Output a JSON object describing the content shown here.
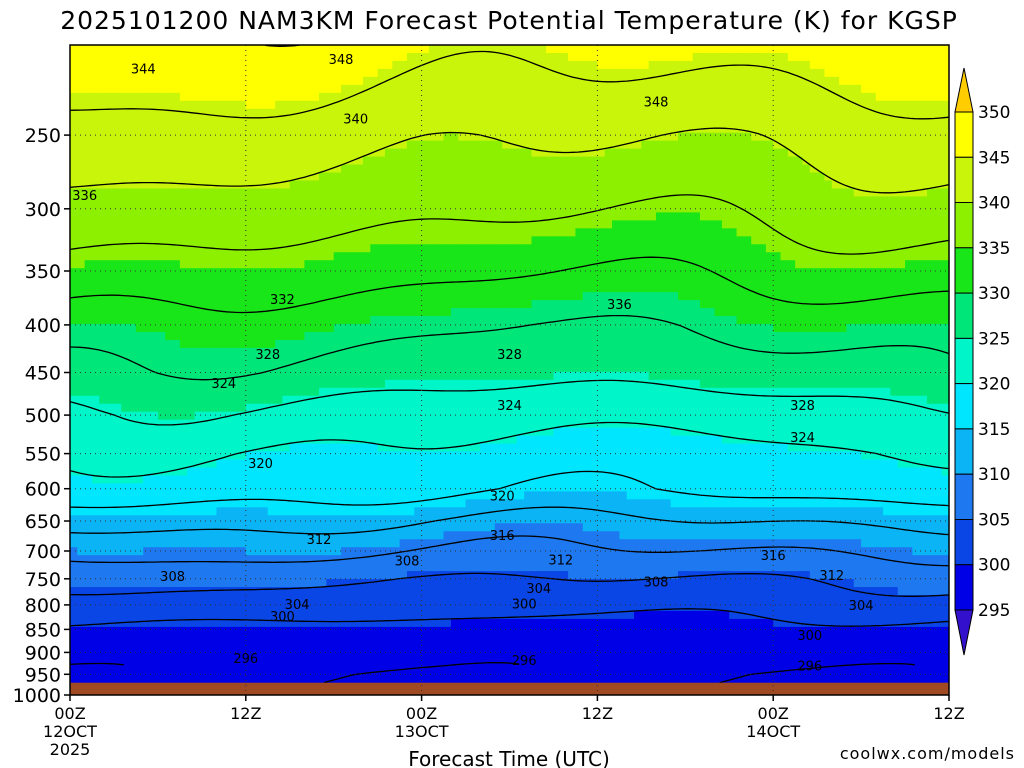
{
  "chart_data": {
    "type": "heatmap",
    "title": "2025101200 NAM3KM Forecast Potential Temperature (K) for KGSP",
    "xlabel": "Forecast Time (UTC)",
    "ylabel": "",
    "x_range_hours": [
      0,
      60
    ],
    "x_ticks": [
      {
        "hour": 0,
        "label": "00Z",
        "sub": "12OCT",
        "sub2": "2025"
      },
      {
        "hour": 12,
        "label": "12Z",
        "sub": "",
        "sub2": ""
      },
      {
        "hour": 24,
        "label": "00Z",
        "sub": "13OCT",
        "sub2": ""
      },
      {
        "hour": 36,
        "label": "12Z",
        "sub": "",
        "sub2": ""
      },
      {
        "hour": 48,
        "label": "00Z",
        "sub": "14OCT",
        "sub2": ""
      },
      {
        "hour": 60,
        "label": "12Z",
        "sub": "",
        "sub2": ""
      }
    ],
    "y_range_hpa": [
      200,
      1000
    ],
    "y_ticks": [
      250,
      300,
      350,
      400,
      450,
      500,
      550,
      600,
      650,
      700,
      750,
      800,
      850,
      900,
      950,
      1000
    ],
    "contour_interval_k": 4,
    "levels": [
      295,
      300,
      305,
      310,
      315,
      320,
      325,
      330,
      335,
      340,
      345,
      350
    ],
    "colorbar_labels": [
      "350",
      "345",
      "340",
      "335",
      "330",
      "325",
      "320",
      "315",
      "310",
      "305",
      "300",
      "295"
    ],
    "fill_colors": [
      "#3311cc",
      "#0000e6",
      "#0a46e6",
      "#1e78f0",
      "#0ab4f5",
      "#00e6ff",
      "#00f5c8",
      "#00e678",
      "#19e619",
      "#8cf000",
      "#c8f50a",
      "#ffff00",
      "#ffcd00"
    ],
    "profile_pressure_hpa": [
      200,
      250,
      300,
      350,
      400,
      450,
      500,
      550,
      600,
      650,
      700,
      750,
      800,
      850,
      900,
      950,
      970
    ],
    "profile_theta_k": [
      347,
      342,
      338,
      334,
      330,
      327,
      323,
      320,
      318,
      313,
      309,
      305,
      302,
      299,
      297,
      296,
      296
    ],
    "contour_labels": [
      {
        "text": "344",
        "hour": 5.0,
        "p": 212
      },
      {
        "text": "348",
        "hour": 18.5,
        "p": 207
      },
      {
        "text": "348",
        "hour": 40.0,
        "p": 230
      },
      {
        "text": "340",
        "hour": 19.5,
        "p": 240
      },
      {
        "text": "336",
        "hour": 1.0,
        "p": 290
      },
      {
        "text": "336",
        "hour": 37.5,
        "p": 380
      },
      {
        "text": "332",
        "hour": 14.5,
        "p": 375
      },
      {
        "text": "328",
        "hour": 13.5,
        "p": 430
      },
      {
        "text": "328",
        "hour": 30.0,
        "p": 430
      },
      {
        "text": "328",
        "hour": 50.0,
        "p": 488
      },
      {
        "text": "324",
        "hour": 10.5,
        "p": 462
      },
      {
        "text": "324",
        "hour": 30.0,
        "p": 488
      },
      {
        "text": "324",
        "hour": 50.0,
        "p": 528
      },
      {
        "text": "320",
        "hour": 13.0,
        "p": 563
      },
      {
        "text": "320",
        "hour": 29.5,
        "p": 610
      },
      {
        "text": "316",
        "hour": 29.5,
        "p": 673
      },
      {
        "text": "316",
        "hour": 48.0,
        "p": 707
      },
      {
        "text": "312",
        "hour": 17.0,
        "p": 680
      },
      {
        "text": "312",
        "hour": 33.5,
        "p": 715
      },
      {
        "text": "312",
        "hour": 52.0,
        "p": 743
      },
      {
        "text": "308",
        "hour": 7.0,
        "p": 745
      },
      {
        "text": "308",
        "hour": 23.0,
        "p": 717
      },
      {
        "text": "308",
        "hour": 40.0,
        "p": 755
      },
      {
        "text": "304",
        "hour": 15.5,
        "p": 798
      },
      {
        "text": "304",
        "hour": 32.0,
        "p": 767
      },
      {
        "text": "304",
        "hour": 54.0,
        "p": 800
      },
      {
        "text": "300",
        "hour": 14.5,
        "p": 822
      },
      {
        "text": "300",
        "hour": 31.0,
        "p": 797
      },
      {
        "text": "300",
        "hour": 50.5,
        "p": 862
      },
      {
        "text": "296",
        "hour": 12.0,
        "p": 913
      },
      {
        "text": "296",
        "hour": 31.0,
        "p": 917
      },
      {
        "text": "296",
        "hour": 50.5,
        "p": 930
      }
    ],
    "ground_pressure_hpa": 970,
    "ground_color": "#a04a23",
    "grid": true,
    "grid_style": "dotted",
    "legend": "colorbar-right",
    "credit": "coolwx.com/models",
    "credit_color": "#dd3333"
  }
}
